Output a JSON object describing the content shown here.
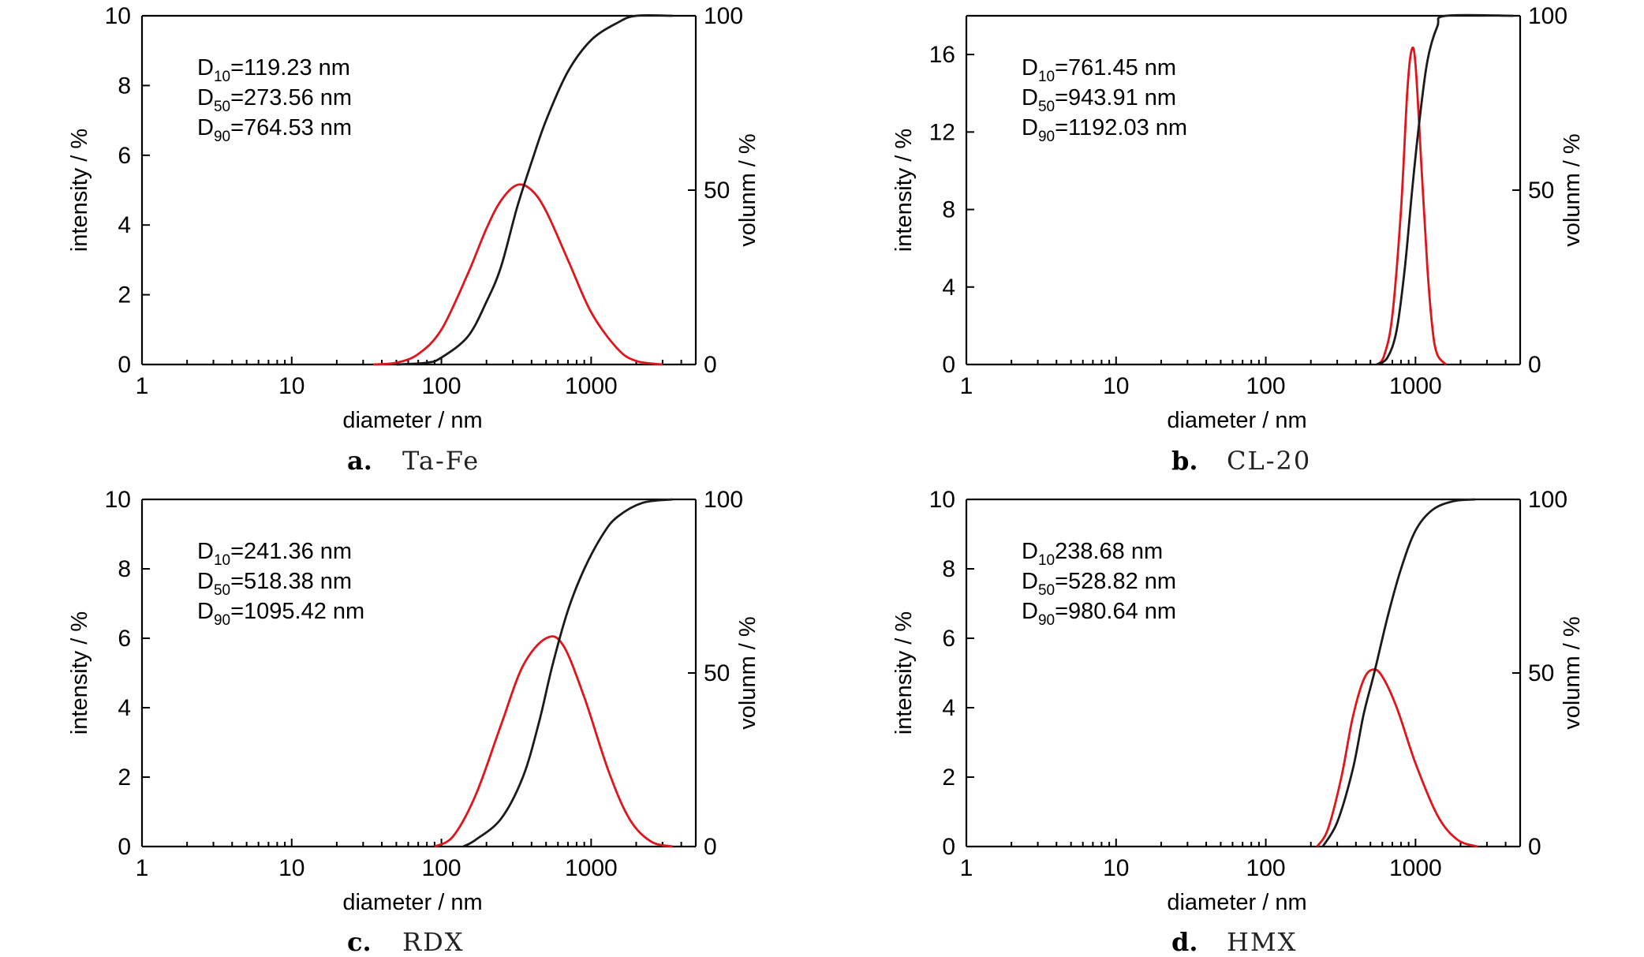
{
  "chart_data": [
    {
      "type": "line",
      "caption_letter": "a.",
      "caption_label": "Ta-Fe",
      "xlabel": "diameter / nm",
      "ylabel_left": "intensity / %",
      "ylabel_right": "volunm / %",
      "x_scale": "log",
      "xlim": [
        1,
        5000
      ],
      "x_ticks": [
        "1",
        "10",
        "100",
        "1000"
      ],
      "ylim_left": [
        0,
        10
      ],
      "y_ticks_left": [
        "0",
        "2",
        "4",
        "6",
        "8",
        "10"
      ],
      "ylim_right": [
        0,
        100
      ],
      "y_ticks_right": [
        "0",
        "50",
        "100"
      ],
      "annotations": [
        {
          "base": "D",
          "sub": "10",
          "text": "=119.23 nm"
        },
        {
          "base": "D",
          "sub": "50",
          "text": "=273.56 nm"
        },
        {
          "base": "D",
          "sub": "90",
          "text": "=764.53 nm"
        }
      ],
      "series": [
        {
          "axis": "left",
          "color": "#e0151b",
          "points": [
            [
              35,
              0
            ],
            [
              50,
              0.05
            ],
            [
              70,
              0.3
            ],
            [
              100,
              1.0
            ],
            [
              150,
              2.6
            ],
            [
              200,
              3.9
            ],
            [
              250,
              4.7
            ],
            [
              320,
              5.15
            ],
            [
              400,
              5.0
            ],
            [
              500,
              4.4
            ],
            [
              700,
              3.0
            ],
            [
              1000,
              1.5
            ],
            [
              1500,
              0.45
            ],
            [
              2000,
              0.1
            ],
            [
              3000,
              0
            ]
          ]
        },
        {
          "axis": "right",
          "color": "#1a1a1a",
          "points": [
            [
              50,
              0
            ],
            [
              80,
              0.5
            ],
            [
              100,
              2
            ],
            [
              150,
              8
            ],
            [
              200,
              18
            ],
            [
              250,
              28
            ],
            [
              320,
              45
            ],
            [
              400,
              58
            ],
            [
              500,
              70
            ],
            [
              700,
              84
            ],
            [
              1000,
              93
            ],
            [
              1500,
              98
            ],
            [
              2000,
              100
            ],
            [
              3500,
              100
            ]
          ]
        }
      ]
    },
    {
      "type": "line",
      "caption_letter": "b.",
      "caption_label": "CL-20",
      "xlabel": "diameter / nm",
      "ylabel_left": "intensity / %",
      "ylabel_right": "volunm / %",
      "x_scale": "log",
      "xlim": [
        1,
        5000
      ],
      "x_ticks": [
        "1",
        "10",
        "100",
        "1000"
      ],
      "ylim_left": [
        0,
        18
      ],
      "y_ticks_left": [
        "0",
        "4",
        "8",
        "12",
        "16"
      ],
      "ylim_right": [
        0,
        100
      ],
      "y_ticks_right": [
        "0",
        "50",
        "100"
      ],
      "annotations": [
        {
          "base": "D",
          "sub": "10",
          "text": "=761.45 nm"
        },
        {
          "base": "D",
          "sub": "50",
          "text": "=943.91 nm"
        },
        {
          "base": "D",
          "sub": "90",
          "text": "=1192.03 nm"
        }
      ],
      "series": [
        {
          "axis": "left",
          "color": "#e0151b",
          "points": [
            [
              560,
              0
            ],
            [
              620,
              0.5
            ],
            [
              700,
              2.5
            ],
            [
              800,
              8
            ],
            [
              880,
              14
            ],
            [
              940,
              16.2
            ],
            [
              1000,
              15.5
            ],
            [
              1100,
              10
            ],
            [
              1200,
              5
            ],
            [
              1300,
              1.8
            ],
            [
              1400,
              0.5
            ],
            [
              1600,
              0
            ]
          ]
        },
        {
          "axis": "right",
          "color": "#1a1a1a",
          "points": [
            [
              550,
              0
            ],
            [
              650,
              2
            ],
            [
              750,
              10
            ],
            [
              850,
              28
            ],
            [
              950,
              50
            ],
            [
              1050,
              68
            ],
            [
              1200,
              87
            ],
            [
              1400,
              97
            ],
            [
              1600,
              100
            ],
            [
              4500,
              100
            ]
          ]
        }
      ]
    },
    {
      "type": "line",
      "caption_letter": "c.",
      "caption_label": "RDX",
      "xlabel": "diameter / nm",
      "ylabel_left": "intensity / %",
      "ylabel_right": "volunm / %",
      "x_scale": "log",
      "xlim": [
        1,
        5000
      ],
      "x_ticks": [
        "1",
        "10",
        "100",
        "1000"
      ],
      "ylim_left": [
        0,
        10
      ],
      "y_ticks_left": [
        "0",
        "2",
        "4",
        "6",
        "8",
        "10"
      ],
      "ylim_right": [
        0,
        100
      ],
      "y_ticks_right": [
        "0",
        "50",
        "100"
      ],
      "annotations": [
        {
          "base": "D",
          "sub": "10",
          "text": "=241.36 nm"
        },
        {
          "base": "D",
          "sub": "50",
          "text": "=518.38 nm"
        },
        {
          "base": "D",
          "sub": "90",
          "text": "=1095.42 nm"
        }
      ],
      "series": [
        {
          "axis": "left",
          "color": "#e0151b",
          "points": [
            [
              90,
              0
            ],
            [
              120,
              0.3
            ],
            [
              170,
              1.5
            ],
            [
              250,
              3.5
            ],
            [
              350,
              5.2
            ],
            [
              500,
              6.0
            ],
            [
              650,
              5.8
            ],
            [
              900,
              4.3
            ],
            [
              1300,
              2.2
            ],
            [
              1800,
              0.8
            ],
            [
              2500,
              0.15
            ],
            [
              3500,
              0
            ]
          ]
        },
        {
          "axis": "right",
          "color": "#1a1a1a",
          "points": [
            [
              140,
              0
            ],
            [
              170,
              2
            ],
            [
              250,
              8
            ],
            [
              350,
              20
            ],
            [
              450,
              36
            ],
            [
              550,
              52
            ],
            [
              700,
              68
            ],
            [
              900,
              80
            ],
            [
              1200,
              90
            ],
            [
              1500,
              95
            ],
            [
              2200,
              99
            ],
            [
              3500,
              100
            ]
          ]
        }
      ]
    },
    {
      "type": "line",
      "caption_letter": "d.",
      "caption_label": "HMX",
      "xlabel": "diameter / nm",
      "ylabel_left": "intensity / %",
      "ylabel_right": "volunm / %",
      "x_scale": "log",
      "xlim": [
        1,
        5000
      ],
      "x_ticks": [
        "1",
        "10",
        "100",
        "1000"
      ],
      "ylim_left": [
        0,
        10
      ],
      "y_ticks_left": [
        "0",
        "2",
        "4",
        "6",
        "8",
        "10"
      ],
      "ylim_right": [
        0,
        100
      ],
      "y_ticks_right": [
        "0",
        "50",
        "100"
      ],
      "annotations": [
        {
          "base": "D",
          "sub": "10",
          "text": "238.68 nm"
        },
        {
          "base": "D",
          "sub": "50",
          "text": "=528.82 nm"
        },
        {
          "base": "D",
          "sub": "90",
          "text": "=980.64 nm"
        }
      ],
      "series": [
        {
          "axis": "left",
          "color": "#e0151b",
          "points": [
            [
              220,
              0
            ],
            [
              260,
              0.5
            ],
            [
              320,
              2.0
            ],
            [
              380,
              3.7
            ],
            [
              450,
              4.8
            ],
            [
              520,
              5.1
            ],
            [
              600,
              4.9
            ],
            [
              750,
              4.0
            ],
            [
              1000,
              2.4
            ],
            [
              1400,
              0.9
            ],
            [
              1900,
              0.2
            ],
            [
              2600,
              0
            ]
          ]
        },
        {
          "axis": "right",
          "color": "#1a1a1a",
          "points": [
            [
              240,
              0
            ],
            [
              300,
              7
            ],
            [
              380,
              22
            ],
            [
              450,
              38
            ],
            [
              530,
              50
            ],
            [
              650,
              66
            ],
            [
              800,
              80
            ],
            [
              1000,
              91
            ],
            [
              1300,
              97
            ],
            [
              1800,
              99.5
            ],
            [
              2500,
              100
            ]
          ]
        }
      ]
    }
  ]
}
